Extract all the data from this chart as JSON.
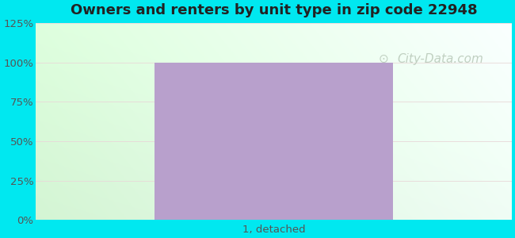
{
  "title": "Owners and renters by unit type in zip code 22948",
  "categories": [
    "1, detached"
  ],
  "values": [
    100
  ],
  "bar_color": "#b8a0cc",
  "bar_width": 0.5,
  "ylim": [
    0,
    125
  ],
  "yticks": [
    0,
    25,
    50,
    75,
    100,
    125
  ],
  "ytick_labels": [
    "0%",
    "25%",
    "50%",
    "75%",
    "100%",
    "125%"
  ],
  "title_fontsize": 13,
  "tick_fontsize": 9.5,
  "bg_outer_color": "#00e8f0",
  "watermark_text": "City-Data.com",
  "watermark_color": "#b8c8b8",
  "watermark_fontsize": 11,
  "grid_color": "#e8d8d8",
  "grid_linewidth": 0.6
}
